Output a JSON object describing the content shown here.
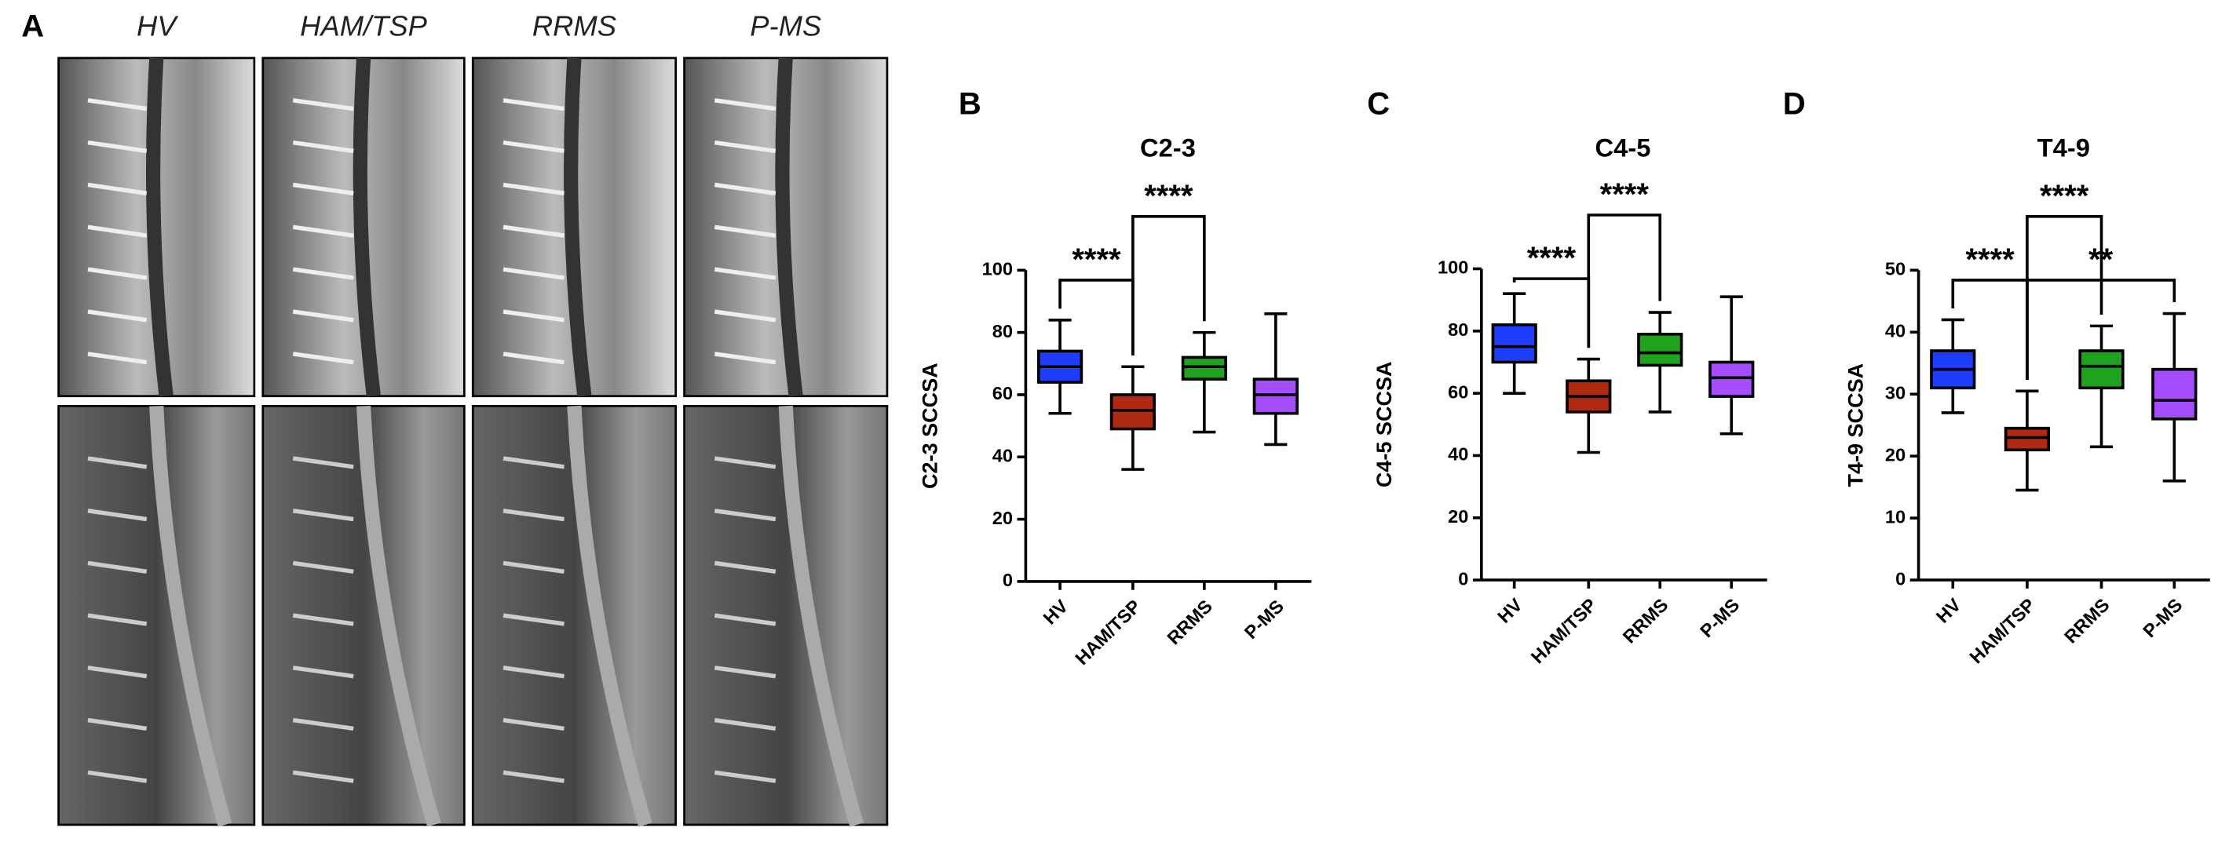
{
  "panel_a": {
    "letter": "A",
    "columns": [
      "HV",
      "HAM/TSP",
      "RRMS",
      "P-MS"
    ]
  },
  "chart_data": [
    {
      "type": "box",
      "letter": "B",
      "title": "C2-3",
      "y_label": "C2-3 SCCSA",
      "ylim": [
        0,
        100
      ],
      "yticks": [
        0,
        20,
        40,
        60,
        80,
        100
      ],
      "series": [
        {
          "name": "HV",
          "color": "#1f3dff",
          "min": 54,
          "q1": 64,
          "median": 69,
          "q3": 74,
          "max": 84
        },
        {
          "name": "HAM/TSP",
          "color": "#b02a12",
          "min": 36,
          "q1": 49,
          "median": 55,
          "q3": 60,
          "max": 69
        },
        {
          "name": "RRMS",
          "color": "#1fa31f",
          "min": 48,
          "q1": 65,
          "median": 69,
          "q3": 72,
          "max": 80
        },
        {
          "name": "P-MS",
          "color": "#a64dff",
          "min": 44,
          "q1": 54,
          "median": 60,
          "q3": 65,
          "max": 86
        }
      ],
      "comparisons": [
        {
          "from": 0,
          "to": 1,
          "label": "****"
        },
        {
          "from": 1,
          "to": 2,
          "label": "****"
        }
      ]
    },
    {
      "type": "box",
      "letter": "C",
      "title": "C4-5",
      "y_label": "C4-5 SCCSA",
      "ylim": [
        0,
        100
      ],
      "yticks": [
        0,
        20,
        40,
        60,
        80,
        100
      ],
      "series": [
        {
          "name": "HV",
          "color": "#1f3dff",
          "min": 60,
          "q1": 70,
          "median": 75,
          "q3": 82,
          "max": 92
        },
        {
          "name": "HAM/TSP",
          "color": "#b02a12",
          "min": 41,
          "q1": 54,
          "median": 59,
          "q3": 64,
          "max": 71
        },
        {
          "name": "RRMS",
          "color": "#1fa31f",
          "min": 54,
          "q1": 69,
          "median": 73,
          "q3": 79,
          "max": 86
        },
        {
          "name": "P-MS",
          "color": "#a64dff",
          "min": 47,
          "q1": 59,
          "median": 65,
          "q3": 70,
          "max": 91
        }
      ],
      "comparisons": [
        {
          "from": 0,
          "to": 1,
          "label": "****"
        },
        {
          "from": 1,
          "to": 2,
          "label": "****"
        }
      ]
    },
    {
      "type": "box",
      "letter": "D",
      "title": "T4-9",
      "y_label": "T4-9 SCCSA",
      "ylim": [
        0,
        50
      ],
      "yticks": [
        0,
        10,
        20,
        30,
        40,
        50
      ],
      "series": [
        {
          "name": "HV",
          "color": "#1f3dff",
          "min": 27,
          "q1": 31,
          "median": 34,
          "q3": 37,
          "max": 42
        },
        {
          "name": "HAM/TSP",
          "color": "#b02a12",
          "min": 14.5,
          "q1": 21,
          "median": 23,
          "q3": 24.5,
          "max": 30.5
        },
        {
          "name": "RRMS",
          "color": "#1fa31f",
          "min": 21.5,
          "q1": 31,
          "median": 34.5,
          "q3": 37,
          "max": 41
        },
        {
          "name": "P-MS",
          "color": "#a64dff",
          "min": 16,
          "q1": 26,
          "median": 29,
          "q3": 34,
          "max": 43
        }
      ],
      "comparisons": [
        {
          "from": 0,
          "to": 1,
          "label": "****"
        },
        {
          "from": 1,
          "to": 2,
          "label": "****"
        },
        {
          "from": 1,
          "to": 3,
          "label": "**"
        }
      ]
    }
  ]
}
